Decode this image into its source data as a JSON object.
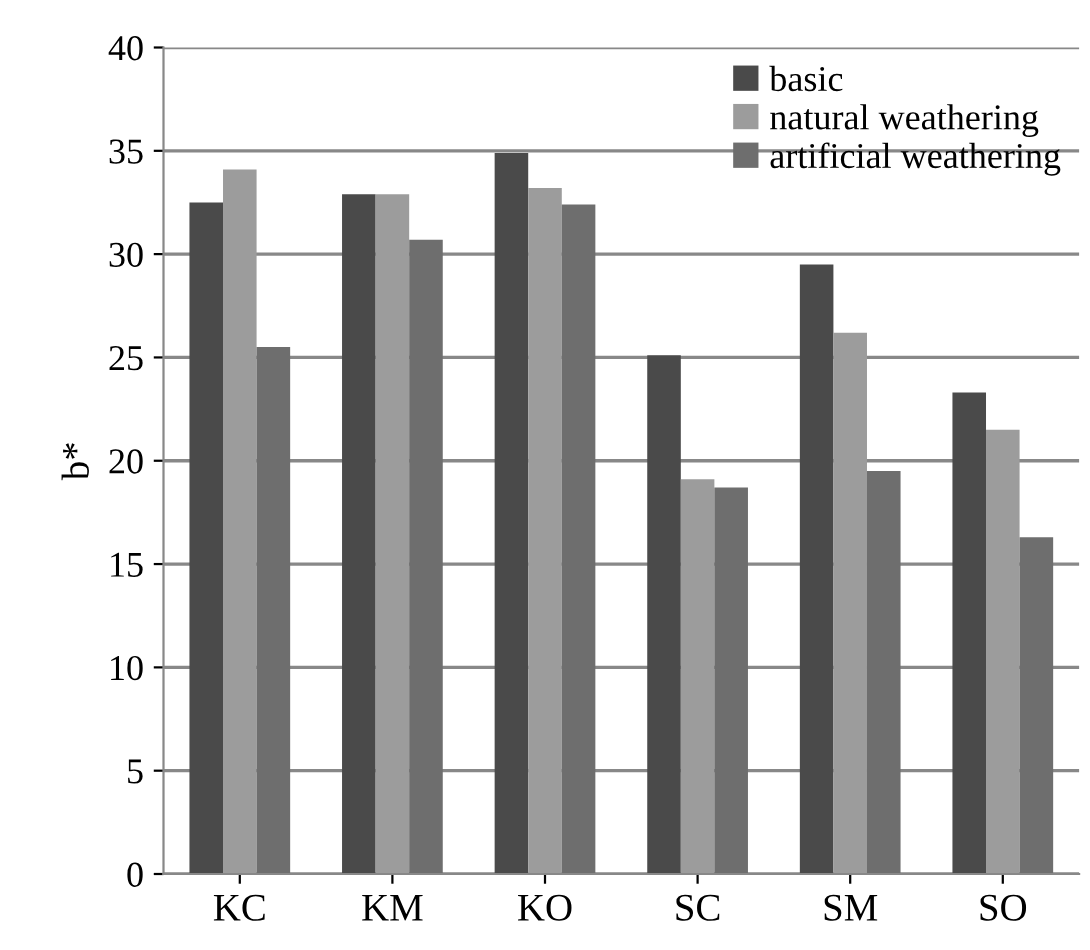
{
  "chart_data": {
    "type": "bar",
    "ylabel": "b*",
    "categories": [
      "KC",
      "KM",
      "KO",
      "SC",
      "SM",
      "SO"
    ],
    "series": [
      {
        "name": "basic",
        "color": "#4a4a4a",
        "values": [
          32.5,
          32.9,
          34.9,
          25.1,
          29.5,
          23.3
        ]
      },
      {
        "name": "natural weathering",
        "color": "#9c9c9c",
        "values": [
          34.1,
          32.9,
          33.2,
          19.1,
          26.2,
          21.5
        ]
      },
      {
        "name": "artificial weathering",
        "color": "#6e6e6e",
        "values": [
          25.5,
          30.7,
          32.4,
          18.7,
          19.5,
          16.3
        ]
      }
    ],
    "ylim": [
      0,
      40
    ],
    "yticks": [
      0,
      5,
      10,
      15,
      20,
      25,
      30,
      35,
      40
    ],
    "grid": "y",
    "legend": "top right"
  }
}
